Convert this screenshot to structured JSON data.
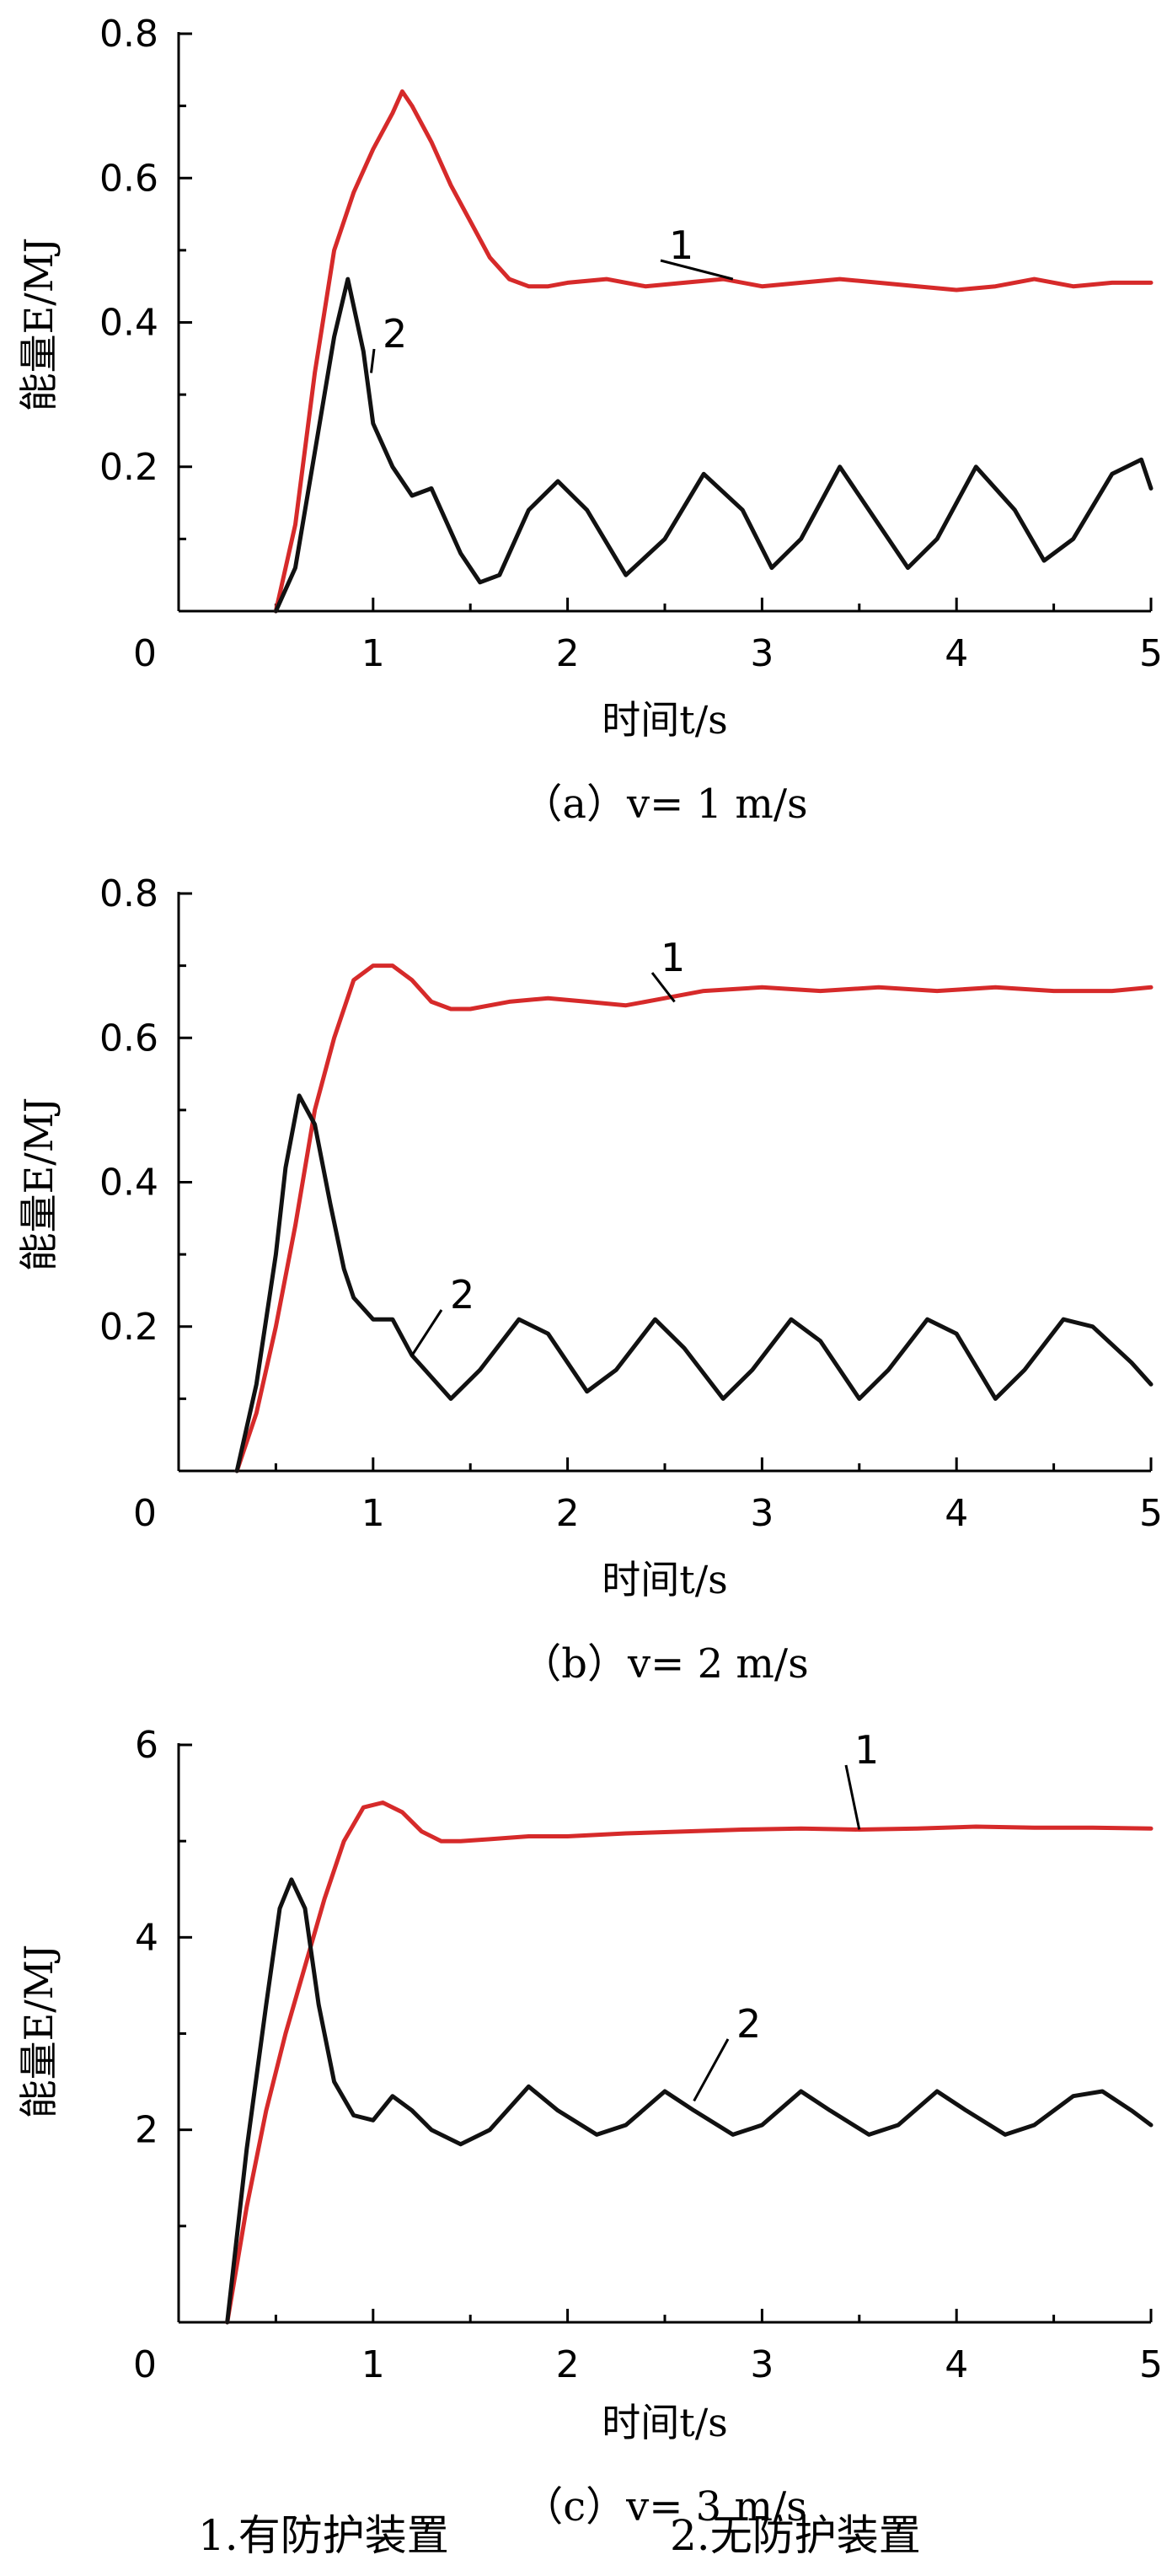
{
  "colors": {
    "series_1": "#d62a2a",
    "series_2": "#111111",
    "axis": "#000000"
  },
  "legend": {
    "item_1": "1.有防护装置",
    "item_2": "2.无防护装置"
  },
  "chart_data": [
    {
      "type": "line",
      "caption": "（a）v= 1 m/s",
      "xlabel": "时间t/s",
      "ylabel": "能量E/MJ",
      "xlim": [
        0,
        5
      ],
      "ylim": [
        0,
        0.8
      ],
      "x_ticks": [
        "0",
        "1",
        "2",
        "3",
        "4",
        "5"
      ],
      "y_ticks": [
        "0.2",
        "0.4",
        "0.6",
        "0.8"
      ],
      "y_tick_values": [
        0.2,
        0.4,
        0.6,
        0.8
      ],
      "series": [
        {
          "label": "1",
          "color": "#d62a2a",
          "x": [
            0.5,
            0.6,
            0.7,
            0.8,
            0.9,
            1.0,
            1.1,
            1.15,
            1.2,
            1.3,
            1.4,
            1.5,
            1.6,
            1.7,
            1.8,
            1.9,
            2.0,
            2.2,
            2.4,
            2.6,
            2.8,
            3.0,
            3.2,
            3.4,
            3.6,
            3.8,
            4.0,
            4.2,
            4.4,
            4.6,
            4.8,
            5.0
          ],
          "y": [
            0.0,
            0.12,
            0.33,
            0.5,
            0.58,
            0.64,
            0.69,
            0.72,
            0.7,
            0.65,
            0.59,
            0.54,
            0.49,
            0.46,
            0.45,
            0.45,
            0.455,
            0.46,
            0.45,
            0.455,
            0.46,
            0.45,
            0.455,
            0.46,
            0.455,
            0.45,
            0.445,
            0.45,
            0.46,
            0.45,
            0.455,
            0.455
          ]
        },
        {
          "label": "2",
          "color": "#111111",
          "x": [
            0.5,
            0.6,
            0.7,
            0.8,
            0.87,
            0.95,
            1.0,
            1.1,
            1.2,
            1.3,
            1.45,
            1.55,
            1.65,
            1.8,
            1.95,
            2.1,
            2.3,
            2.5,
            2.7,
            2.9,
            3.05,
            3.2,
            3.4,
            3.6,
            3.75,
            3.9,
            4.1,
            4.3,
            4.45,
            4.6,
            4.8,
            4.95,
            5.0
          ],
          "y": [
            0.0,
            0.06,
            0.22,
            0.38,
            0.46,
            0.36,
            0.26,
            0.2,
            0.16,
            0.17,
            0.08,
            0.04,
            0.05,
            0.14,
            0.18,
            0.14,
            0.05,
            0.1,
            0.19,
            0.14,
            0.06,
            0.1,
            0.2,
            0.12,
            0.06,
            0.1,
            0.2,
            0.14,
            0.07,
            0.1,
            0.19,
            0.21,
            0.17
          ]
        }
      ]
    },
    {
      "type": "line",
      "caption": "（b）v= 2 m/s",
      "xlabel": "时间t/s",
      "ylabel": "能量E/MJ",
      "xlim": [
        0,
        5
      ],
      "ylim": [
        0,
        0.8
      ],
      "x_ticks": [
        "0",
        "1",
        "2",
        "3",
        "4",
        "5"
      ],
      "y_ticks": [
        "0.2",
        "0.4",
        "0.6",
        "0.8"
      ],
      "y_tick_values": [
        0.2,
        0.4,
        0.6,
        0.8
      ],
      "series": [
        {
          "label": "1",
          "color": "#d62a2a",
          "x": [
            0.3,
            0.4,
            0.5,
            0.6,
            0.7,
            0.8,
            0.9,
            1.0,
            1.1,
            1.2,
            1.3,
            1.4,
            1.5,
            1.7,
            1.9,
            2.1,
            2.3,
            2.5,
            2.7,
            3.0,
            3.3,
            3.6,
            3.9,
            4.2,
            4.5,
            4.8,
            5.0
          ],
          "y": [
            0.0,
            0.08,
            0.2,
            0.34,
            0.5,
            0.6,
            0.68,
            0.7,
            0.7,
            0.68,
            0.65,
            0.64,
            0.64,
            0.65,
            0.655,
            0.65,
            0.645,
            0.655,
            0.665,
            0.67,
            0.665,
            0.67,
            0.665,
            0.67,
            0.665,
            0.665,
            0.67
          ]
        },
        {
          "label": "2",
          "color": "#111111",
          "x": [
            0.3,
            0.4,
            0.5,
            0.55,
            0.62,
            0.7,
            0.78,
            0.85,
            0.9,
            1.0,
            1.1,
            1.2,
            1.4,
            1.55,
            1.75,
            1.9,
            2.1,
            2.25,
            2.45,
            2.6,
            2.8,
            2.95,
            3.15,
            3.3,
            3.5,
            3.65,
            3.85,
            4.0,
            4.2,
            4.35,
            4.55,
            4.7,
            4.9,
            5.0
          ],
          "y": [
            0.0,
            0.12,
            0.3,
            0.42,
            0.52,
            0.48,
            0.37,
            0.28,
            0.24,
            0.21,
            0.21,
            0.16,
            0.1,
            0.14,
            0.21,
            0.19,
            0.11,
            0.14,
            0.21,
            0.17,
            0.1,
            0.14,
            0.21,
            0.18,
            0.1,
            0.14,
            0.21,
            0.19,
            0.1,
            0.14,
            0.21,
            0.2,
            0.15,
            0.12
          ]
        }
      ]
    },
    {
      "type": "line",
      "caption": "（c）v= 3 m/s",
      "xlabel": "时间t/s",
      "ylabel": "能量E/MJ",
      "xlim": [
        0,
        5
      ],
      "ylim": [
        0,
        6
      ],
      "x_ticks": [
        "0",
        "1",
        "2",
        "3",
        "4",
        "5"
      ],
      "y_ticks": [
        "2",
        "4",
        "6"
      ],
      "y_tick_values": [
        2,
        4,
        6
      ],
      "series": [
        {
          "label": "1",
          "color": "#d62a2a",
          "x": [
            0.25,
            0.35,
            0.45,
            0.55,
            0.65,
            0.75,
            0.85,
            0.95,
            1.05,
            1.15,
            1.25,
            1.35,
            1.45,
            1.6,
            1.8,
            2.0,
            2.3,
            2.6,
            2.9,
            3.2,
            3.5,
            3.8,
            4.1,
            4.4,
            4.7,
            5.0
          ],
          "y": [
            0.0,
            1.2,
            2.2,
            3.0,
            3.7,
            4.4,
            5.0,
            5.35,
            5.4,
            5.3,
            5.1,
            5.0,
            5.0,
            5.02,
            5.05,
            5.05,
            5.08,
            5.1,
            5.12,
            5.13,
            5.12,
            5.13,
            5.15,
            5.14,
            5.14,
            5.13
          ]
        },
        {
          "label": "2",
          "color": "#111111",
          "x": [
            0.25,
            0.35,
            0.45,
            0.52,
            0.58,
            0.65,
            0.72,
            0.8,
            0.9,
            1.0,
            1.1,
            1.2,
            1.3,
            1.45,
            1.6,
            1.8,
            1.95,
            2.15,
            2.3,
            2.5,
            2.65,
            2.85,
            3.0,
            3.2,
            3.35,
            3.55,
            3.7,
            3.9,
            4.05,
            4.25,
            4.4,
            4.6,
            4.75,
            4.9,
            5.0
          ],
          "y": [
            0.0,
            1.8,
            3.3,
            4.3,
            4.6,
            4.3,
            3.3,
            2.5,
            2.15,
            2.1,
            2.35,
            2.2,
            2.0,
            1.85,
            2.0,
            2.45,
            2.2,
            1.95,
            2.05,
            2.4,
            2.2,
            1.95,
            2.05,
            2.4,
            2.2,
            1.95,
            2.05,
            2.4,
            2.2,
            1.95,
            2.05,
            2.35,
            2.4,
            2.2,
            2.05
          ]
        }
      ]
    }
  ]
}
